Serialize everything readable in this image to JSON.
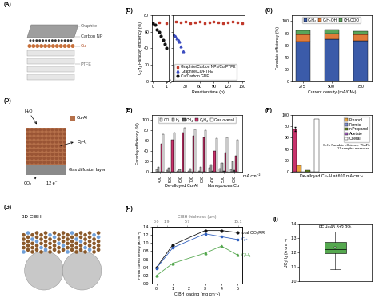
{
  "chart_data": [
    {
      "panel": "(A)",
      "type": "diagram",
      "labels": [
        "Graphite",
        "Carbon NP",
        "Cu",
        "PTFE"
      ]
    },
    {
      "panel": "(B)",
      "type": "scatter",
      "y_label": "C₂H₄ Faraday efficiency (%)",
      "xlim": [
        -0.1,
        1.2
      ],
      "xticks": [
        0,
        1
      ],
      "ylim": [
        0,
        80
      ],
      "yticks": [
        0,
        20,
        40,
        60,
        80
      ],
      "series": [
        {
          "color": "#c0392b",
          "marker": "square",
          "x": [
            0,
            0.5,
            1.0
          ],
          "values": [
            70,
            71,
            70
          ]
        },
        {
          "color": "#111111",
          "marker": "circle",
          "x": [
            0,
            0.15,
            0.3,
            0.45,
            0.6,
            0.75,
            0.9,
            1.05
          ],
          "values": [
            70,
            68,
            63,
            60,
            55,
            50,
            45,
            40
          ]
        }
      ]
    },
    {
      "type": "scatter",
      "x_label": "Reaction time (h)",
      "xlim": [
        2,
        155
      ],
      "xticks": [
        30,
        60,
        90,
        120,
        150
      ],
      "ylim": [
        0,
        80
      ],
      "yticks": [
        0,
        20,
        40,
        60,
        80
      ],
      "tick_labels": "x",
      "legend": "lower left",
      "series": [
        {
          "name": "Graphite/Carbon NPs/Cu/PTFE",
          "color": "#c0392b",
          "marker": "square",
          "x": [
            10,
            20,
            30,
            40,
            50,
            60,
            70,
            80,
            90,
            100,
            110,
            120,
            130,
            140,
            150
          ],
          "values": [
            72,
            71,
            72,
            70,
            71,
            72,
            70,
            71,
            72,
            71,
            70,
            71,
            72,
            71,
            70
          ]
        },
        {
          "name": "Graphite/Cu/PTFE",
          "color": "#3b4cc0",
          "marker": "triangle",
          "x": [
            5,
            8,
            11,
            14,
            17,
            20,
            24
          ],
          "values": [
            57,
            55,
            52,
            50,
            48,
            42,
            37
          ]
        },
        {
          "name": "Cu/Carbon GDE",
          "color": "#111111",
          "marker": "circle",
          "x": [],
          "values": []
        }
      ]
    },
    {
      "panel": "(C)",
      "type": "bar",
      "stacked": true,
      "categories": [
        "275",
        "500",
        "750"
      ],
      "x_label": "Current density (mA/CM²)",
      "y_label": "Faradaic efficiency (%)",
      "ylim": [
        0,
        110
      ],
      "yticks": [
        0,
        20,
        40,
        60,
        80,
        100
      ],
      "legend": "upper center",
      "series": [
        {
          "name": "C₂H₄",
          "color": "#3b5ba9",
          "values": [
            66,
            70,
            68
          ]
        },
        {
          "name": "C₂H₅OH",
          "color": "#e07b39",
          "values": [
            12,
            10,
            10
          ]
        },
        {
          "name": "CH₃COO",
          "color": "#5aa55a",
          "values": [
            7,
            6,
            5
          ]
        }
      ]
    },
    {
      "panel": "(D)",
      "type": "diagram",
      "labels": [
        "Cu-Al",
        "Gas diffusion layer",
        "H₂O",
        "C₂H₄",
        "CO₂",
        "12 e⁻"
      ]
    },
    {
      "panel": "(E)",
      "type": "bar",
      "categories": [
        "400",
        "500",
        "600",
        "700",
        "800",
        "400",
        "500",
        "600"
      ],
      "groups": [
        {
          "label": "De-alloyed Cu-Al",
          "count": 5
        },
        {
          "label": "Nanoporous Cu",
          "count": 3
        }
      ],
      "annotations": [
        "mA cm⁻²"
      ],
      "y_label": "Faraday efficiency (%)",
      "ylim": [
        0,
        110
      ],
      "yticks": [
        0,
        20,
        40,
        60,
        80,
        100
      ],
      "legend": "upper center",
      "series": [
        {
          "name": "CO",
          "color": "#d9d9d9",
          "values": [
            5,
            4,
            3,
            3,
            2,
            8,
            7,
            6
          ]
        },
        {
          "name": "H₂",
          "color": "#a6a6a6",
          "values": [
            10,
            8,
            6,
            7,
            10,
            15,
            18,
            20
          ]
        },
        {
          "name": "CH₄",
          "color": "#595959",
          "values": [
            1,
            1,
            1,
            1,
            1,
            2,
            3,
            4
          ]
        },
        {
          "name": "C₂H₄",
          "color": "#c8326b",
          "values": [
            55,
            62,
            75,
            70,
            66,
            40,
            38,
            32
          ]
        },
        {
          "name": "Gas overall",
          "color": "#ffffff",
          "values": [
            72,
            76,
            85,
            82,
            80,
            65,
            66,
            62
          ]
        }
      ]
    },
    {
      "panel": "(F)",
      "type": "bar",
      "x_label": "De-alloyed Cu-Al at 600 mA cm⁻²",
      "annotations": [
        "C₂H₄ Faradaic efficiency: 75±4%\n17 samples measured"
      ],
      "ylim": [
        0,
        100
      ],
      "yticks": [
        0,
        20,
        40,
        60,
        80,
        100
      ],
      "legend": "upper right",
      "series": [
        {
          "color": "#c8326b",
          "values": [
            75
          ],
          "error": [
            4
          ]
        },
        {
          "name": "Ethanol",
          "color": "#e8a33d",
          "values": [
            12
          ]
        },
        {
          "name": "Formic",
          "color": "#7f8fcf",
          "values": [
            1
          ]
        },
        {
          "name": "n-Propanol",
          "color": "#6b8e23",
          "values": [
            3
          ]
        },
        {
          "name": "Acetate",
          "color": "#9b59b6",
          "values": [
            1
          ]
        },
        {
          "name": "Overall",
          "color": "#ffffff",
          "values": [
            93
          ]
        }
      ]
    },
    {
      "panel": "(G)",
      "type": "diagram",
      "labels": [
        "3D CIBH"
      ]
    },
    {
      "panel": "(H)",
      "type": "line",
      "x_label": "CIBH loading (mg cm⁻²)",
      "x2_label": "CIBH thickness (μm)",
      "y_label": "Partial current density (A cm⁻²)",
      "xlim": [
        -0.3,
        5.3
      ],
      "xticks": [
        0,
        1,
        2,
        3,
        4,
        5
      ],
      "x2lim": [
        -0.9,
        15.9
      ],
      "x2ticks": [
        0.0,
        1.9,
        5.7,
        15.1
      ],
      "ylim": [
        0.0,
        1.4
      ],
      "yticks": [
        0.0,
        0.2,
        0.4,
        0.6,
        0.8,
        1.0,
        1.2,
        1.4
      ],
      "x": [
        0,
        1,
        3,
        4,
        5
      ],
      "series": [
        {
          "name": "total CO₂RR",
          "color": "#111111",
          "marker": "circle",
          "values": [
            0.4,
            0.95,
            1.3,
            1.3,
            1.25
          ]
        },
        {
          "name": "C₂₊",
          "color": "#2f5fbf",
          "marker": "square",
          "values": [
            0.38,
            0.88,
            1.22,
            1.15,
            1.08
          ]
        },
        {
          "name": "C₂H₄",
          "color": "#55a84f",
          "marker": "triangle",
          "values": [
            0.2,
            0.5,
            0.75,
            0.92,
            0.7
          ]
        }
      ]
    },
    {
      "panel": "(I)",
      "type": "box",
      "y_label": "JC₂H₄ (A cm⁻²)",
      "annotations": [
        "EEH=45.8±3.3%"
      ],
      "ylim": [
        1.0,
        1.4
      ],
      "yticks": [
        1.0,
        1.1,
        1.2,
        1.3,
        1.4
      ],
      "tick_labels": "y",
      "color": "#55a84f",
      "box": {
        "whislo": 1.08,
        "q1": 1.19,
        "med": 1.22,
        "q3": 1.27,
        "whishi": 1.34,
        "mean": 1.23
      }
    }
  ]
}
